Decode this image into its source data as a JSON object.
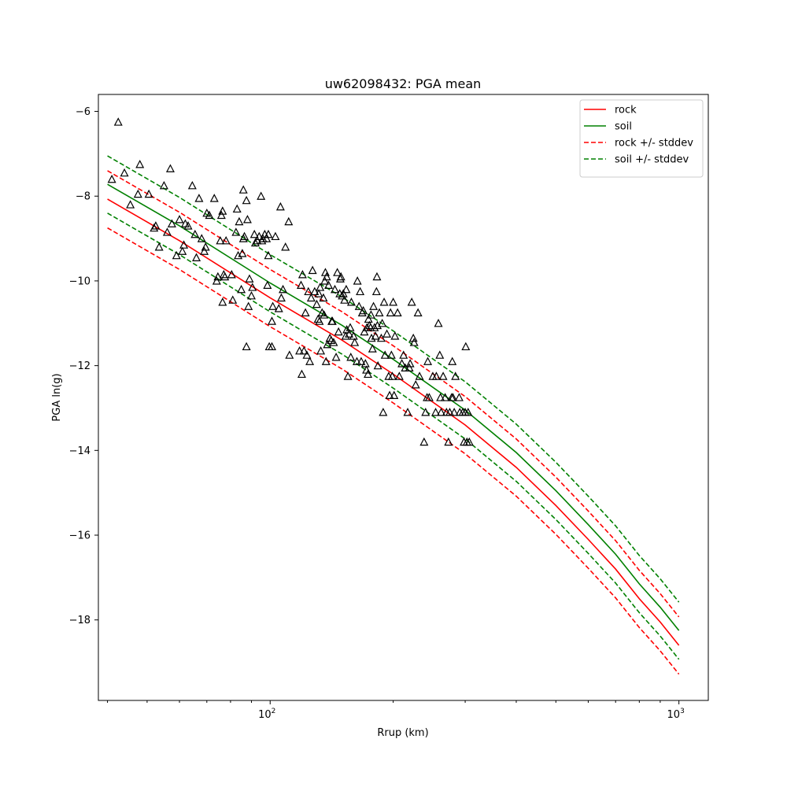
{
  "chart_data": {
    "type": "scatter",
    "title": "uw62098432: PGA mean",
    "xlabel": "Rrup (km)",
    "ylabel": "PGA ln(g)",
    "xscale": "log",
    "xlim": [
      38,
      1180
    ],
    "ylim": [
      -19.9,
      -5.6
    ],
    "x_ticks": [
      {
        "value": 100,
        "base": "10",
        "exp": "2"
      },
      {
        "value": 1000,
        "base": "10",
        "exp": "3"
      }
    ],
    "y_ticks": [
      -6,
      -8,
      -10,
      -12,
      -14,
      -16,
      -18
    ],
    "y_tick_labels": [
      "−6",
      "−8",
      "−10",
      "−12",
      "−14",
      "−16",
      "−18"
    ],
    "grid": false,
    "legend_position": "top-right",
    "series": [
      {
        "name": "rock",
        "style": "solid",
        "color": "#ff0000",
        "x": [
          40,
          60,
          100,
          150,
          200,
          300,
          400,
          500,
          600,
          700,
          800,
          900,
          1000
        ],
        "y": [
          -8.07,
          -9.05,
          -10.4,
          -11.4,
          -12.2,
          -13.4,
          -14.4,
          -15.3,
          -16.1,
          -16.8,
          -17.5,
          -18.05,
          -18.6
        ]
      },
      {
        "name": "soil",
        "style": "solid",
        "color": "#008000",
        "x": [
          40,
          60,
          100,
          150,
          200,
          300,
          400,
          500,
          600,
          700,
          800,
          900,
          1000
        ],
        "y": [
          -7.72,
          -8.7,
          -10.05,
          -11.05,
          -11.85,
          -13.05,
          -14.05,
          -14.95,
          -15.75,
          -16.45,
          -17.15,
          -17.7,
          -18.25
        ]
      },
      {
        "name": "rock +/- stddev",
        "style": "dashed",
        "color": "#ff0000",
        "x": [
          40,
          60,
          100,
          150,
          200,
          300,
          400,
          500,
          600,
          700,
          800,
          900,
          1000
        ],
        "y_upper": [
          -7.4,
          -8.38,
          -9.73,
          -10.73,
          -11.53,
          -12.73,
          -13.73,
          -14.63,
          -15.43,
          -16.13,
          -16.83,
          -17.38,
          -17.93
        ],
        "y_lower": [
          -8.75,
          -9.73,
          -11.08,
          -12.08,
          -12.88,
          -14.08,
          -15.08,
          -15.98,
          -16.78,
          -17.48,
          -18.18,
          -18.73,
          -19.28
        ]
      },
      {
        "name": "soil +/- stddev",
        "style": "dashed",
        "color": "#008000",
        "x": [
          40,
          60,
          100,
          150,
          200,
          300,
          400,
          500,
          600,
          700,
          800,
          900,
          1000
        ],
        "y_upper": [
          -7.05,
          -8.03,
          -9.38,
          -10.38,
          -11.18,
          -12.38,
          -13.38,
          -14.28,
          -15.08,
          -15.78,
          -16.48,
          -17.03,
          -17.58
        ],
        "y_lower": [
          -8.4,
          -9.38,
          -10.73,
          -11.73,
          -12.53,
          -13.73,
          -14.73,
          -15.63,
          -16.43,
          -17.13,
          -17.83,
          -18.38,
          -18.93
        ]
      }
    ],
    "observations": {
      "marker": "triangle-open",
      "color": "#000000",
      "points": [
        [
          42.5,
          -6.25
        ],
        [
          41,
          -7.6
        ],
        [
          44,
          -7.45
        ],
        [
          45.5,
          -8.2
        ],
        [
          47.5,
          -7.95
        ],
        [
          48,
          -7.25
        ],
        [
          50.5,
          -7.95
        ],
        [
          52,
          -8.75
        ],
        [
          52.5,
          -8.7
        ],
        [
          53.5,
          -9.2
        ],
        [
          55,
          -7.75
        ],
        [
          56,
          -8.85
        ],
        [
          57,
          -7.35
        ],
        [
          57.5,
          -8.65
        ],
        [
          59,
          -9.4
        ],
        [
          60,
          -8.55
        ],
        [
          61,
          -9.3
        ],
        [
          61.5,
          -9.15
        ],
        [
          62,
          -8.65
        ],
        [
          63,
          -8.7
        ],
        [
          64.5,
          -7.75
        ],
        [
          65.5,
          -8.9
        ],
        [
          66,
          -9.45
        ],
        [
          67,
          -8.05
        ],
        [
          68,
          -9.0
        ],
        [
          69,
          -9.3
        ],
        [
          69.5,
          -9.2
        ],
        [
          70,
          -8.4
        ],
        [
          71,
          -8.45
        ],
        [
          73,
          -8.05
        ],
        [
          74,
          -10.0
        ],
        [
          74.5,
          -9.9
        ],
        [
          75.5,
          -9.05
        ],
        [
          76,
          -8.45
        ],
        [
          76.5,
          -8.35
        ],
        [
          76.5,
          -10.5
        ],
        [
          77,
          -9.85
        ],
        [
          77.5,
          -9.9
        ],
        [
          78,
          -9.05
        ],
        [
          80.5,
          -9.85
        ],
        [
          81,
          -10.45
        ],
        [
          82.5,
          -8.85
        ],
        [
          83,
          -8.3
        ],
        [
          83.5,
          -9.4
        ],
        [
          84,
          -8.6
        ],
        [
          85,
          -10.2
        ],
        [
          85.5,
          -9.35
        ],
        [
          86,
          -9.0
        ],
        [
          86,
          -7.85
        ],
        [
          86.5,
          -8.95
        ],
        [
          87.5,
          -11.55
        ],
        [
          87.5,
          -8.1
        ],
        [
          88,
          -8.55
        ],
        [
          88.5,
          -10.6
        ],
        [
          89,
          -9.95
        ],
        [
          90,
          -10.35
        ],
        [
          90.5,
          -10.15
        ],
        [
          91.5,
          -8.9
        ],
        [
          92,
          -9.1
        ],
        [
          93,
          -9.05
        ],
        [
          94,
          -8.95
        ],
        [
          95,
          -8.0
        ],
        [
          95.5,
          -9.05
        ],
        [
          96,
          -9.0
        ],
        [
          97,
          -8.9
        ],
        [
          98,
          -9.0
        ],
        [
          98.5,
          -10.1
        ],
        [
          99,
          -8.9
        ],
        [
          99,
          -9.4
        ],
        [
          99.5,
          -11.55
        ],
        [
          101,
          -11.55
        ],
        [
          101.5,
          -10.6
        ],
        [
          101,
          -10.95
        ],
        [
          103,
          -8.95
        ],
        [
          105,
          -10.65
        ],
        [
          106,
          -8.25
        ],
        [
          106.5,
          -10.4
        ],
        [
          107.5,
          -10.2
        ],
        [
          109,
          -9.2
        ],
        [
          111,
          -8.6
        ],
        [
          111.5,
          -11.75
        ],
        [
          118,
          -11.65
        ],
        [
          119,
          -10.1
        ],
        [
          119.5,
          -12.2
        ],
        [
          120,
          -9.85
        ],
        [
          121,
          -11.65
        ],
        [
          122,
          -10.75
        ],
        [
          123,
          -11.75
        ],
        [
          124,
          -10.25
        ],
        [
          125,
          -11.9
        ],
        [
          126,
          -10.4
        ],
        [
          127,
          -9.75
        ],
        [
          128.5,
          -10.25
        ],
        [
          130,
          -10.55
        ],
        [
          131,
          -10.9
        ],
        [
          131.5,
          -10.3
        ],
        [
          132,
          -10.95
        ],
        [
          132.5,
          -10.15
        ],
        [
          133,
          -11.65
        ],
        [
          134,
          -10.75
        ],
        [
          135,
          -10.4
        ],
        [
          135.5,
          -10.8
        ],
        [
          136,
          -10.0
        ],
        [
          136.5,
          -9.8
        ],
        [
          137,
          -11.9
        ],
        [
          137.5,
          -9.9
        ],
        [
          138,
          -11.5
        ],
        [
          139,
          -10.1
        ],
        [
          140,
          -11.35
        ],
        [
          141,
          -11.4
        ],
        [
          141.5,
          -10.95
        ],
        [
          142,
          -10.95
        ],
        [
          143,
          -11.45
        ],
        [
          144,
          -10.2
        ],
        [
          145,
          -11.8
        ],
        [
          146,
          -9.8
        ],
        [
          147,
          -11.2
        ],
        [
          148,
          -10.3
        ],
        [
          148.5,
          -9.95
        ],
        [
          149,
          -9.9
        ],
        [
          150,
          -10.35
        ],
        [
          151,
          -10.3
        ],
        [
          152,
          -10.45
        ],
        [
          153,
          -11.3
        ],
        [
          153.5,
          -10.2
        ],
        [
          154,
          -11.15
        ],
        [
          155,
          -12.25
        ],
        [
          156,
          -11.25
        ],
        [
          157,
          -11.1
        ],
        [
          157.5,
          -11.8
        ],
        [
          158,
          -10.5
        ],
        [
          160,
          -11.3
        ],
        [
          161,
          -11.45
        ],
        [
          163,
          -11.9
        ],
        [
          163.5,
          -10.0
        ],
        [
          165,
          -10.6
        ],
        [
          166,
          -10.25
        ],
        [
          167,
          -11.9
        ],
        [
          168,
          -10.75
        ],
        [
          169,
          -10.7
        ],
        [
          170,
          -11.2
        ],
        [
          171,
          -11.95
        ],
        [
          172,
          -12.1
        ],
        [
          172.5,
          -11.1
        ],
        [
          173.5,
          -12.2
        ],
        [
          174,
          -10.9
        ],
        [
          175,
          -11.05
        ],
        [
          176,
          -11.1
        ],
        [
          176.5,
          -10.8
        ],
        [
          177,
          -11.35
        ],
        [
          178,
          -11.6
        ],
        [
          179,
          -10.6
        ],
        [
          180,
          -11.1
        ],
        [
          181,
          -11.3
        ],
        [
          182,
          -10.25
        ],
        [
          182.5,
          -9.9
        ],
        [
          183,
          -11.05
        ],
        [
          183.5,
          -12.0
        ],
        [
          185,
          -10.75
        ],
        [
          187,
          -11.35
        ],
        [
          188,
          -11.0
        ],
        [
          189,
          -13.1
        ],
        [
          190,
          -10.5
        ],
        [
          191,
          -11.75
        ],
        [
          193,
          -11.25
        ],
        [
          195,
          -12.25
        ],
        [
          196,
          -12.7
        ],
        [
          197,
          -10.75
        ],
        [
          198,
          -11.75
        ],
        [
          199,
          -12.25
        ],
        [
          200,
          -10.5
        ],
        [
          201,
          -12.7
        ],
        [
          202,
          -11.3
        ],
        [
          205,
          -10.75
        ],
        [
          207,
          -12.25
        ],
        [
          210,
          -11.95
        ],
        [
          212,
          -11.75
        ],
        [
          214,
          -12.05
        ],
        [
          217,
          -13.1
        ],
        [
          219,
          -12.05
        ],
        [
          220,
          -11.95
        ],
        [
          222,
          -10.5
        ],
        [
          224,
          -11.35
        ],
        [
          225,
          -11.45
        ],
        [
          227,
          -12.45
        ],
        [
          230,
          -10.75
        ],
        [
          232,
          -12.25
        ],
        [
          238,
          -13.8
        ],
        [
          240,
          -13.1
        ],
        [
          242,
          -12.75
        ],
        [
          243,
          -11.9
        ],
        [
          245,
          -12.75
        ],
        [
          250,
          -12.25
        ],
        [
          254,
          -13.1
        ],
        [
          255,
          -12.25
        ],
        [
          258,
          -11.0
        ],
        [
          260,
          -11.75
        ],
        [
          261,
          -12.75
        ],
        [
          262,
          -13.1
        ],
        [
          265,
          -12.25
        ],
        [
          268,
          -12.75
        ],
        [
          270,
          -13.1
        ],
        [
          273,
          -13.8
        ],
        [
          275,
          -13.1
        ],
        [
          278,
          -12.75
        ],
        [
          279,
          -11.9
        ],
        [
          280,
          -12.75
        ],
        [
          282,
          -13.1
        ],
        [
          284,
          -12.25
        ],
        [
          290,
          -12.75
        ],
        [
          291,
          -13.1
        ],
        [
          296,
          -13.1
        ],
        [
          298,
          -13.8
        ],
        [
          300,
          -13.1
        ],
        [
          301,
          -11.55
        ],
        [
          303,
          -13.8
        ],
        [
          305,
          -13.1
        ],
        [
          307,
          -13.8
        ]
      ]
    }
  }
}
